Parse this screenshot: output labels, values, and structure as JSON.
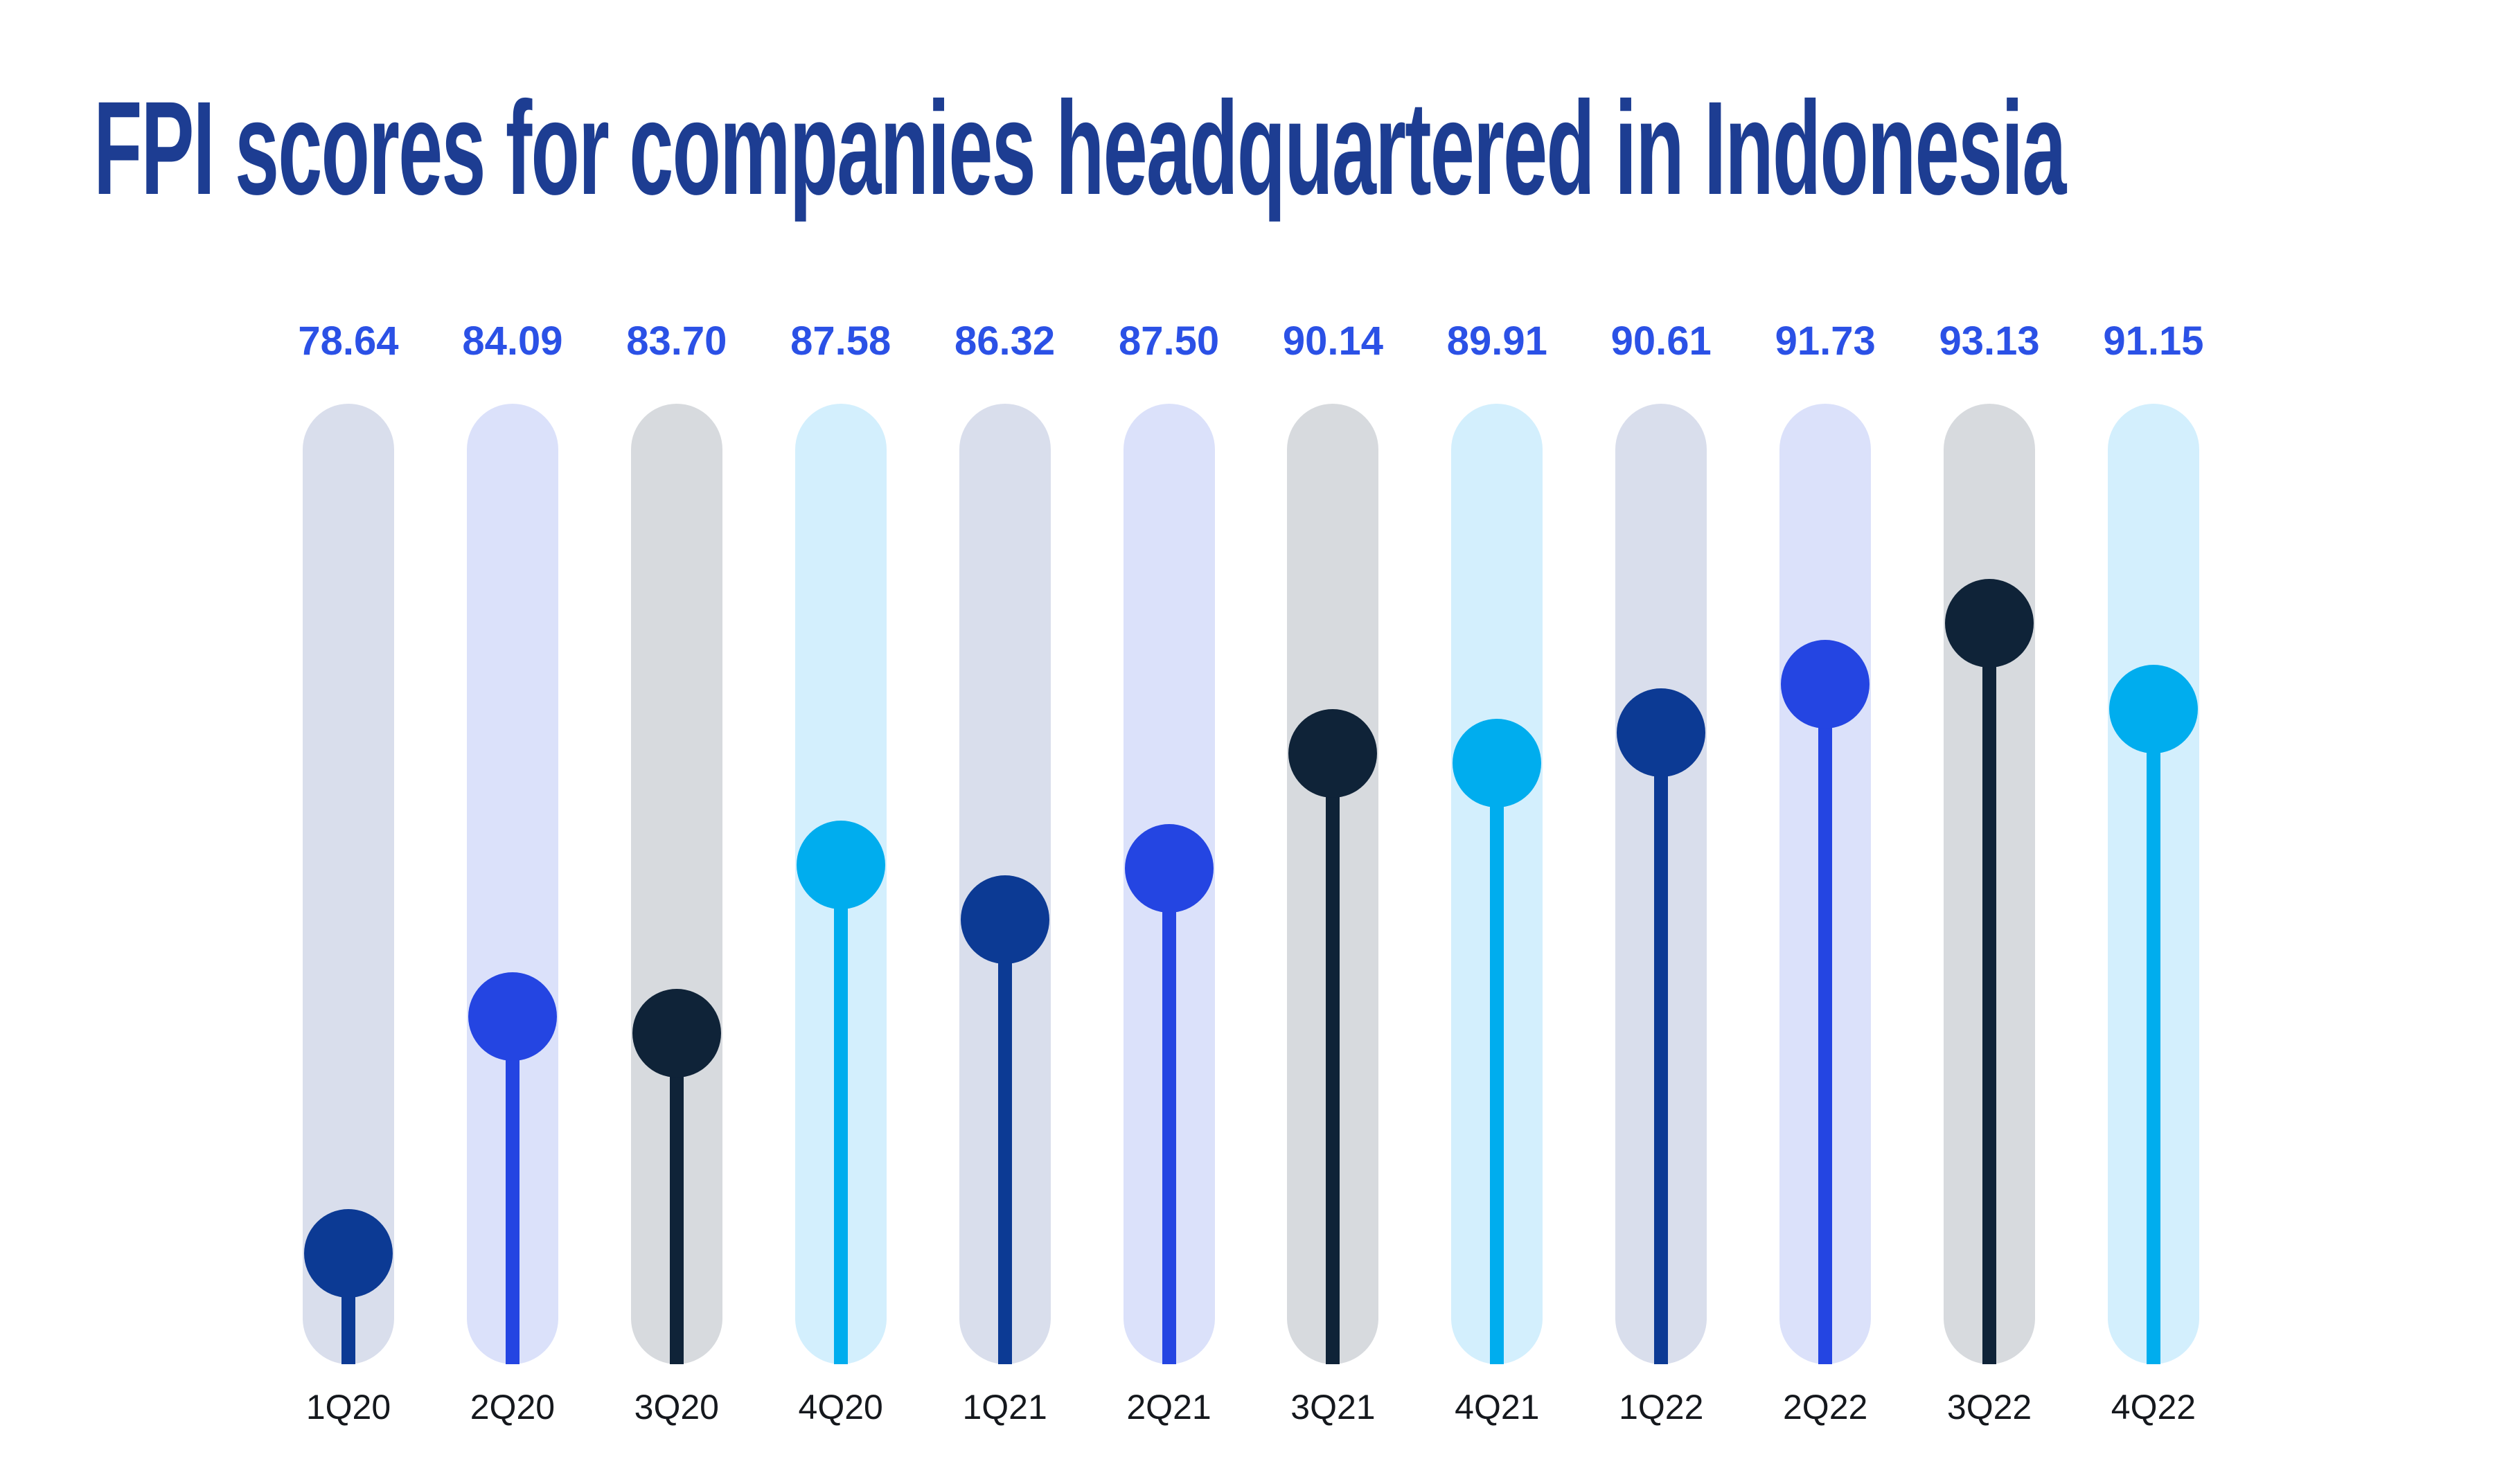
{
  "title": "FPI scores for companies headquartered in Indonesia",
  "colors": {
    "background": "#ffffff",
    "title": "#1d3d92",
    "value_label": "#2b51e6",
    "axis_label": "#15181d",
    "series_palette": [
      {
        "dot": "#0c3a94",
        "track": "#d9deec"
      },
      {
        "dot": "#2445e2",
        "track": "#dbe1fa"
      },
      {
        "dot": "#0f2338",
        "track": "#d7dade"
      },
      {
        "dot": "#00adee",
        "track": "#d3effd"
      }
    ]
  },
  "chart_data": {
    "type": "bar",
    "variant": "lollipop",
    "title": "FPI scores for companies headquartered in Indonesia",
    "categories": [
      "1Q20",
      "2Q20",
      "3Q20",
      "4Q20",
      "1Q21",
      "2Q21",
      "3Q21",
      "4Q21",
      "1Q22",
      "2Q22",
      "3Q22",
      "4Q22"
    ],
    "values": [
      78.64,
      84.09,
      83.7,
      87.58,
      86.32,
      87.5,
      90.14,
      89.91,
      90.61,
      91.73,
      93.13,
      91.15
    ],
    "value_labels": [
      "78.64",
      "84.09",
      "83.70",
      "87.58",
      "86.32",
      "87.50",
      "90.14",
      "89.91",
      "90.61",
      "91.73",
      "93.13",
      "91.15"
    ],
    "xlabel": "",
    "ylabel": "",
    "ylim": [
      76.09,
      98.18
    ],
    "grid": false,
    "legend": false,
    "value_labels_shown": true,
    "palette_note": "dot/track colors repeat every 4 columns"
  }
}
